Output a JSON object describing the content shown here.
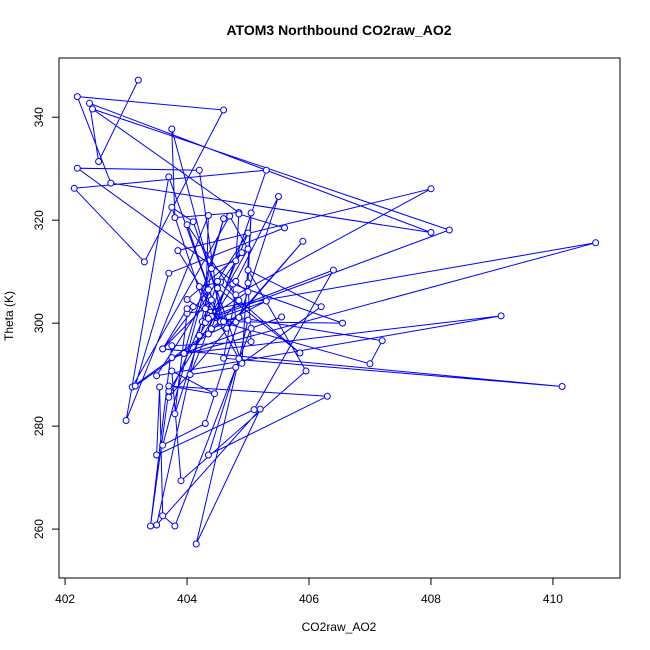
{
  "chart_data": {
    "type": "line",
    "title": "ATOM3 Northbound CO2raw_AO2",
    "xlabel": "CO2raw_AO2",
    "ylabel": "Theta (K)",
    "xlim": [
      401.9,
      411.1
    ],
    "ylim": [
      250.5,
      351.5
    ],
    "xticks": [
      402,
      404,
      406,
      408,
      410
    ],
    "yticks": [
      260,
      280,
      300,
      320,
      340
    ],
    "grid": false,
    "marker": "open-circle",
    "line_color": "#0000ff",
    "series": [
      {
        "x": [
          403.2,
          402.55,
          402.4,
          408.0,
          402.75,
          402.2,
          404.6,
          403.3,
          402.15,
          405.3,
          404.4,
          404.55,
          404.2,
          402.2,
          405.0,
          404.25,
          408.3,
          402.45,
          404.85,
          403.8,
          403.75,
          404.6,
          403.1,
          404.7,
          405.0,
          404.2,
          405.3,
          404.3,
          404.35,
          403.0,
          403.7,
          404.55,
          404.0,
          404.85,
          404.55,
          406.55,
          404.75,
          404.8,
          404.35,
          403.15,
          403.7,
          405.6,
          404.85,
          404.8,
          404.4,
          404.3,
          403.75,
          404.1,
          404.9,
          405.05,
          405.0,
          405.05,
          403.75,
          403.4,
          403.7,
          404.8,
          405.5,
          404.3,
          403.6,
          404.6,
          403.95,
          409.15,
          403.5,
          405.0,
          404.05,
          404.8,
          406.2,
          405.0,
          405.95,
          403.9,
          403.75,
          404.45,
          403.7,
          406.3,
          404.35,
          404.85,
          404.2,
          404.55,
          404.4,
          406.4,
          405.1,
          403.5,
          403.55,
          403.6,
          403.8,
          405.05,
          405.55,
          403.75,
          410.7,
          404.0,
          403.8,
          404.5,
          405.85,
          404.5,
          404.9,
          404.0,
          404.6,
          404.85,
          407.2,
          407.0,
          404.35,
          405.0,
          404.15,
          405.2,
          403.5,
          404.35,
          403.6,
          404.4,
          403.7,
          405.9,
          404.65,
          403.85,
          408.0,
          404.8,
          404.6,
          410.15,
          403.6,
          404.0,
          404.1
        ],
        "y": [
          347.2,
          331.4,
          342.7,
          317.6,
          327.2,
          344.0,
          341.4,
          311.9,
          326.2,
          329.7,
          298.9,
          300.5,
          329.7,
          330.1,
          306.1,
          300.3,
          318.1,
          341.6,
          321.5,
          320.5,
          337.7,
          300.4,
          287.6,
          320.8,
          314.4,
          297.6,
          304.3,
          300.1,
          320.9,
          281.1,
          328.4,
          300.0,
          319.1,
          304.4,
          300.3,
          300.0,
          307.6,
          300.2,
          297.9,
          287.8,
          309.7,
          318.5,
          321.2,
          312.1,
          310.6,
          302.8,
          322.5,
          319.7,
          292.2,
          321.4,
          307.8,
          296.4,
          295.6,
          260.6,
          286.8,
          308.1,
          324.6,
          280.5,
          276.3,
          320.3,
          294.1,
          301.4,
          289.8,
          317.5,
          290.0,
          291.4,
          303.2,
          310.3,
          290.7,
          269.4,
          290.7,
          286.3,
          287.8,
          285.8,
          274.4,
          293.1,
          307.1,
          308.0,
          301.3,
          310.3,
          283.2,
          274.4,
          287.6,
          262.6,
          260.6,
          299.0,
          301.2,
          293.3,
          315.6,
          301.9,
          282.4,
          308.1,
          294.2,
          306.8,
          313.7,
          304.6,
          300.3,
          301.1,
          296.6,
          292.1,
          300.9,
          300.6,
          257.1,
          283.3,
          260.8,
          306.5,
          295.0,
          304.5,
          285.6,
          315.9,
          299.0,
          314.1,
          326.1,
          305.5,
          293.2,
          287.7,
          295.0,
          302.8,
          303.2
        ]
      }
    ]
  }
}
